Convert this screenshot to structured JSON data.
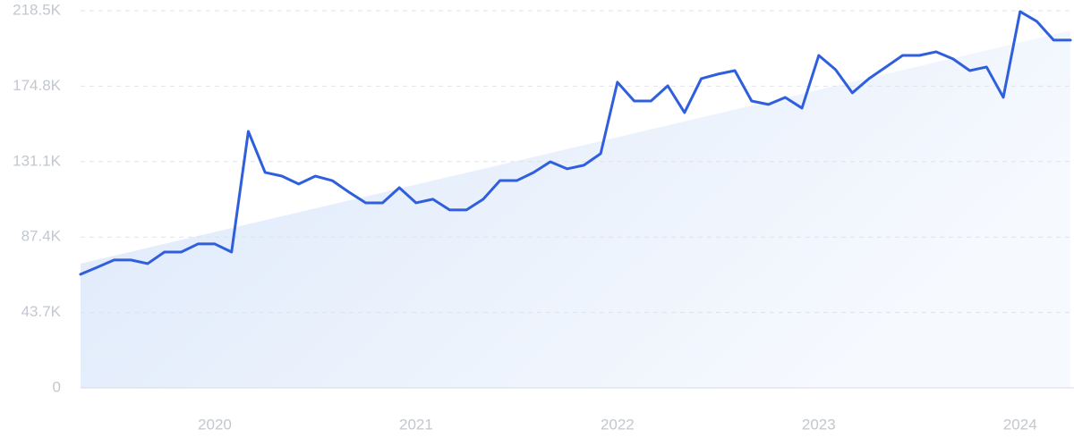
{
  "chart_data": {
    "type": "line",
    "categories": [
      null,
      null,
      null,
      null,
      null,
      null,
      null,
      null,
      "2020",
      null,
      null,
      null,
      null,
      null,
      null,
      null,
      null,
      null,
      null,
      null,
      "2021",
      null,
      null,
      null,
      null,
      null,
      null,
      null,
      null,
      null,
      null,
      null,
      "2022",
      null,
      null,
      null,
      null,
      null,
      null,
      null,
      null,
      null,
      null,
      null,
      "2023",
      null,
      null,
      null,
      null,
      null,
      null,
      null,
      null,
      null,
      null,
      null,
      "2024",
      null,
      null,
      null
    ],
    "series": [
      {
        "color": "#2f5fdc",
        "values": [
          65800,
          69900,
          74100,
          74100,
          72000,
          78700,
          78700,
          83400,
          83400,
          78700,
          148600,
          124800,
          122700,
          118100,
          122700,
          120100,
          113400,
          107200,
          107200,
          116000,
          107200,
          109300,
          103100,
          103100,
          109300,
          120100,
          120100,
          124800,
          131000,
          126900,
          129000,
          135700,
          177100,
          166200,
          166200,
          175000,
          159500,
          179200,
          181800,
          183800,
          166200,
          164200,
          168300,
          162100,
          192600,
          184400,
          170900,
          179200,
          185900,
          192600,
          192600,
          194700,
          190600,
          183800,
          185900,
          168300,
          218000,
          212300,
          201500,
          201500
        ]
      }
    ],
    "trend_values": [
      72000,
      207000
    ],
    "ylim": [
      0,
      218500
    ],
    "yticks": [
      0,
      {
        "value": 43700,
        "label": "43.7K"
      },
      {
        "value": 87400,
        "label": "87.4K"
      },
      {
        "value": 131100,
        "label": "131.1K"
      },
      {
        "value": 174800,
        "label": "174.8K"
      },
      {
        "value": 218500,
        "label": "218.5K"
      }
    ],
    "grid": true
  }
}
